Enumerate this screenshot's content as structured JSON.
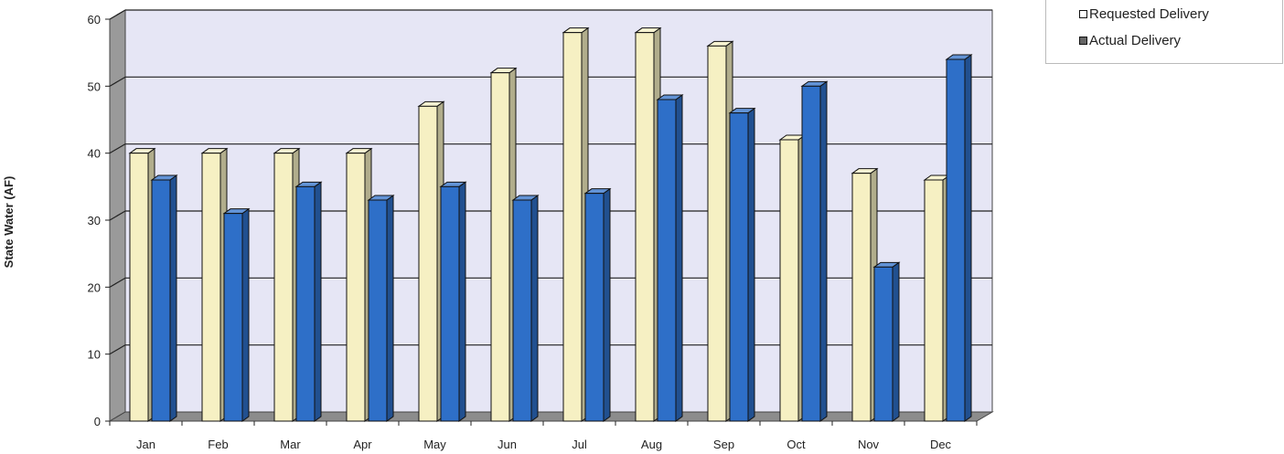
{
  "chart_data": {
    "type": "bar",
    "categories": [
      "Jan",
      "Feb",
      "Mar",
      "Apr",
      "May",
      "Jun",
      "Jul",
      "Aug",
      "Sep",
      "Oct",
      "Nov",
      "Dec"
    ],
    "series": [
      {
        "name": "Requested Delivery",
        "color": "#F6F0C3",
        "values": [
          40,
          40,
          40,
          40,
          47,
          52,
          58,
          58,
          56,
          42,
          37,
          36
        ]
      },
      {
        "name": "Actual Delivery",
        "color": "#2E6FC8",
        "values": [
          36,
          31,
          35,
          33,
          35,
          33,
          34,
          48,
          46,
          50,
          23,
          54
        ]
      }
    ],
    "title": "",
    "xlabel": "",
    "ylabel": "State Water (AF)",
    "ylim": [
      0,
      60
    ],
    "yticks": [
      0,
      10,
      20,
      30,
      40,
      50,
      60
    ],
    "grid": true,
    "legend_position": "top-right",
    "style": "3d-clustered-column",
    "wall_color": "#E6E6F5",
    "floor_color": "#8C8C8C"
  }
}
